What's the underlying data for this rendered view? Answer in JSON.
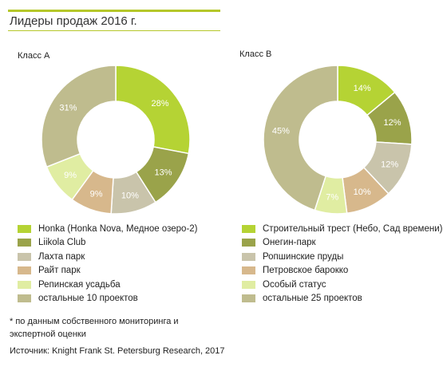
{
  "title": "Лидеры продаж 2016 г.",
  "chart_data": [
    {
      "type": "pie",
      "title": "Класс А",
      "categories": [
        "Honka (Honka Nova, Медное озеро-2)",
        "Liikola Club",
        "Лахта парк",
        "Райт парк",
        "Репинская усадьба",
        "остальные 10 проектов"
      ],
      "values": [
        28,
        13,
        10,
        9,
        9,
        31
      ],
      "labels": [
        "28%",
        "13%",
        "10%",
        "9%",
        "9%",
        "31%"
      ],
      "colors": [
        "#b5d334",
        "#9aa34a",
        "#c9c4ab",
        "#d7b88c",
        "#e0eda2",
        "#bfbc8e"
      ],
      "label_colors": [
        "#ffffff",
        "#ffffff",
        "#ffffff",
        "#ffffff",
        "#ffffff",
        "#ffffff"
      ],
      "legend_position": "bottom"
    },
    {
      "type": "pie",
      "title": "Класс В",
      "categories": [
        "Строительный трест (Небо, Сад времени)",
        "Онегин-парк",
        "Ропшинские пруды",
        "Петровское барокко",
        "Особый статус",
        "остальные 25 проектов"
      ],
      "values": [
        14,
        12,
        12,
        10,
        7,
        45
      ],
      "labels": [
        "14%",
        "12%",
        "12%",
        "10%",
        "7%",
        "45%"
      ],
      "colors": [
        "#b5d334",
        "#9aa34a",
        "#c9c4ab",
        "#d7b88c",
        "#e0eda2",
        "#bfbc8e"
      ],
      "label_colors": [
        "#ffffff",
        "#ffffff",
        "#ffffff",
        "#ffffff",
        "#ffffff",
        "#ffffff"
      ],
      "legend_position": "bottom"
    }
  ],
  "footnote": "* по данным собственного мониторинга и экспертной оценки",
  "source": "Источник: Knight Frank St. Petersburg Research, 2017"
}
